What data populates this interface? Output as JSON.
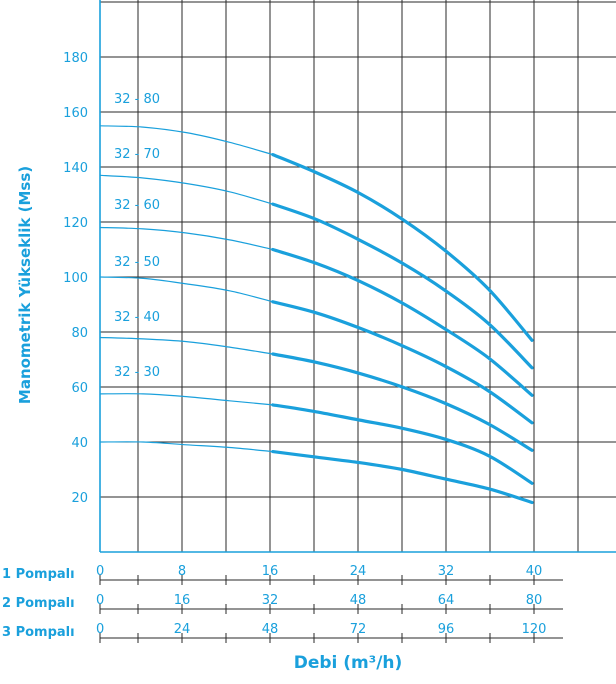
{
  "chart_data": {
    "type": "line",
    "ylabel": "Manometrik Yükseklik (Mss)",
    "xlabel": "Debi (m³/h)",
    "ylim": [
      0,
      200
    ],
    "yticks": [
      20,
      40,
      60,
      80,
      100,
      120,
      140,
      160,
      180
    ],
    "grid": true,
    "accent_color": "#1aa0dc",
    "x_scales": [
      {
        "name": "1 Pompalı",
        "ticks": [
          0,
          8,
          16,
          24,
          32,
          40
        ]
      },
      {
        "name": "2 Pompalı",
        "ticks": [
          0,
          16,
          32,
          48,
          64,
          80
        ]
      },
      {
        "name": "3 Pompalı",
        "ticks": [
          0,
          24,
          48,
          72,
          96,
          120
        ]
      }
    ],
    "x_range_1_pump": [
      0,
      40
    ],
    "series": [
      {
        "name": "32 - 80",
        "x": [
          0,
          4,
          8,
          12,
          16,
          20,
          24,
          28,
          32,
          36,
          40
        ],
        "y": [
          155,
          154.5,
          152.5,
          149,
          144.5,
          138,
          130.5,
          121,
          109.5,
          95.5,
          77
        ]
      },
      {
        "name": "32 - 70",
        "x": [
          0,
          4,
          8,
          12,
          16,
          20,
          24,
          28,
          32,
          36,
          40
        ],
        "y": [
          137,
          136,
          134,
          131,
          126.5,
          121,
          113.5,
          105,
          95,
          83,
          67
        ]
      },
      {
        "name": "32 - 60",
        "x": [
          0,
          4,
          8,
          12,
          16,
          20,
          24,
          28,
          32,
          36,
          40
        ],
        "y": [
          118,
          117.5,
          116,
          113.5,
          110,
          105,
          98.5,
          90.5,
          81,
          70.5,
          57
        ]
      },
      {
        "name": "32 - 50",
        "x": [
          0,
          4,
          8,
          12,
          16,
          20,
          24,
          28,
          32,
          36,
          40
        ],
        "y": [
          100,
          99.5,
          97.5,
          95,
          91,
          87,
          81.5,
          75,
          67.5,
          58.5,
          47
        ]
      },
      {
        "name": "32 - 40",
        "x": [
          0,
          4,
          8,
          12,
          16,
          20,
          24,
          28,
          32,
          36,
          40
        ],
        "y": [
          78,
          77.5,
          76.5,
          74.5,
          72,
          69,
          65,
          60,
          54,
          46.5,
          37
        ]
      },
      {
        "name": "32 - 30",
        "x": [
          0,
          4,
          8,
          12,
          16,
          20,
          24,
          28,
          32,
          36,
          40
        ],
        "y": [
          57.5,
          57.5,
          56.5,
          55,
          53.5,
          51,
          48,
          45,
          41,
          35,
          25
        ]
      },
      {
        "name": "",
        "x": [
          0,
          4,
          8,
          12,
          16,
          20,
          24,
          28,
          32,
          36,
          40
        ],
        "y": [
          40,
          40,
          39,
          38,
          36.5,
          34.5,
          32.5,
          30,
          26.5,
          23,
          18
        ]
      }
    ],
    "series_labels": [
      "32 - 80",
      "32 - 70",
      "32 - 60",
      "32 - 50",
      "32 - 40",
      "32 - 30"
    ]
  }
}
